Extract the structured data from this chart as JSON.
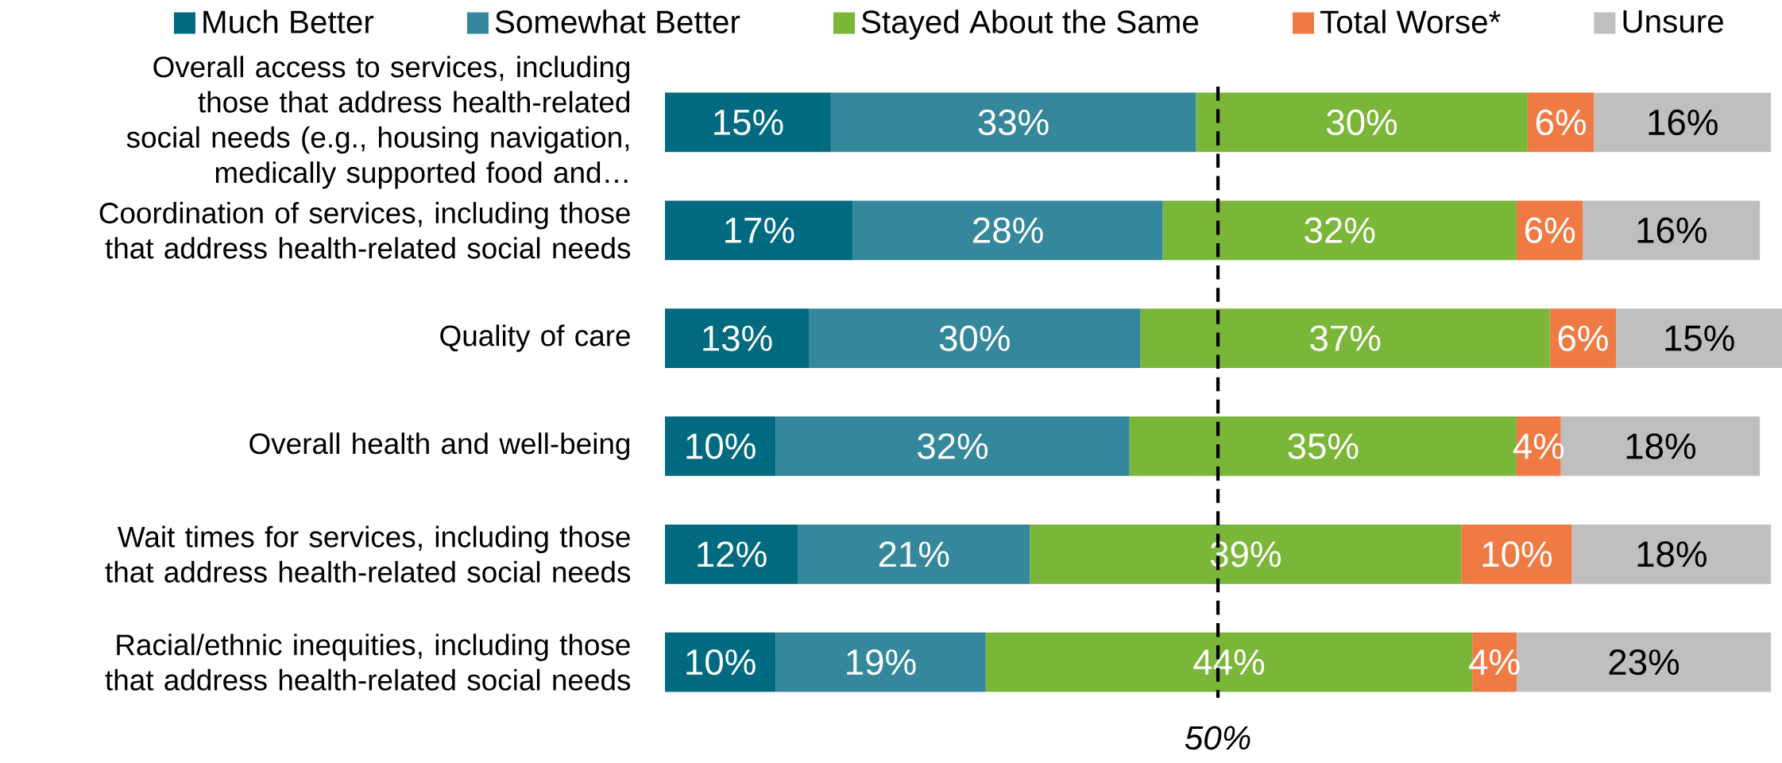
{
  "chart_data": {
    "type": "bar",
    "orientation": "horizontal",
    "stacked": true,
    "categories": [
      "Overall access to services, including those that address health-related social needs (e.g., housing navigation, medically supported food and…",
      "Coordination of services, including those that address health-related social needs",
      "Quality of care",
      "Overall health and well-being",
      "Wait times for services, including those that address health-related social needs",
      "Racial/ethnic inequities, including those that address health-related social needs"
    ],
    "series": [
      {
        "name": "Much Better",
        "color": "#006a80",
        "values": [
          15,
          17,
          13,
          10,
          12,
          10
        ],
        "value_labels": [
          "15%",
          "17%",
          "13%",
          "10%",
          "12%",
          "10%"
        ]
      },
      {
        "name": "Somewhat Better",
        "color": "#35879b",
        "values": [
          33,
          28,
          30,
          32,
          21,
          19
        ],
        "value_labels": [
          "33%",
          "28%",
          "30%",
          "32%",
          "21%",
          "19%"
        ]
      },
      {
        "name": "Stayed About the Same",
        "color": "#7ab637",
        "values": [
          30,
          32,
          37,
          35,
          39,
          44
        ],
        "value_labels": [
          "30%",
          "32%",
          "37%",
          "35%",
          "39%",
          "44%"
        ]
      },
      {
        "name": "Total Worse*",
        "color": "#f07a44",
        "values": [
          6,
          6,
          6,
          4,
          10,
          4
        ],
        "value_labels": [
          "6%",
          "6%",
          "6%",
          "4%",
          "10%",
          "4%"
        ]
      },
      {
        "name": "Unsure",
        "color": "#bfbfbf",
        "values": [
          16,
          16,
          15,
          18,
          18,
          23
        ],
        "value_labels": [
          "16%",
          "16%",
          "15%",
          "18%",
          "18%",
          "23%"
        ]
      }
    ],
    "xlim": [
      0,
      101
    ],
    "tick_labels": "y",
    "legend": "top",
    "ref_lines": [
      {
        "axis": "x",
        "value": 50,
        "label": "50%",
        "line_style": "dashed",
        "color": "#000000"
      }
    ]
  }
}
